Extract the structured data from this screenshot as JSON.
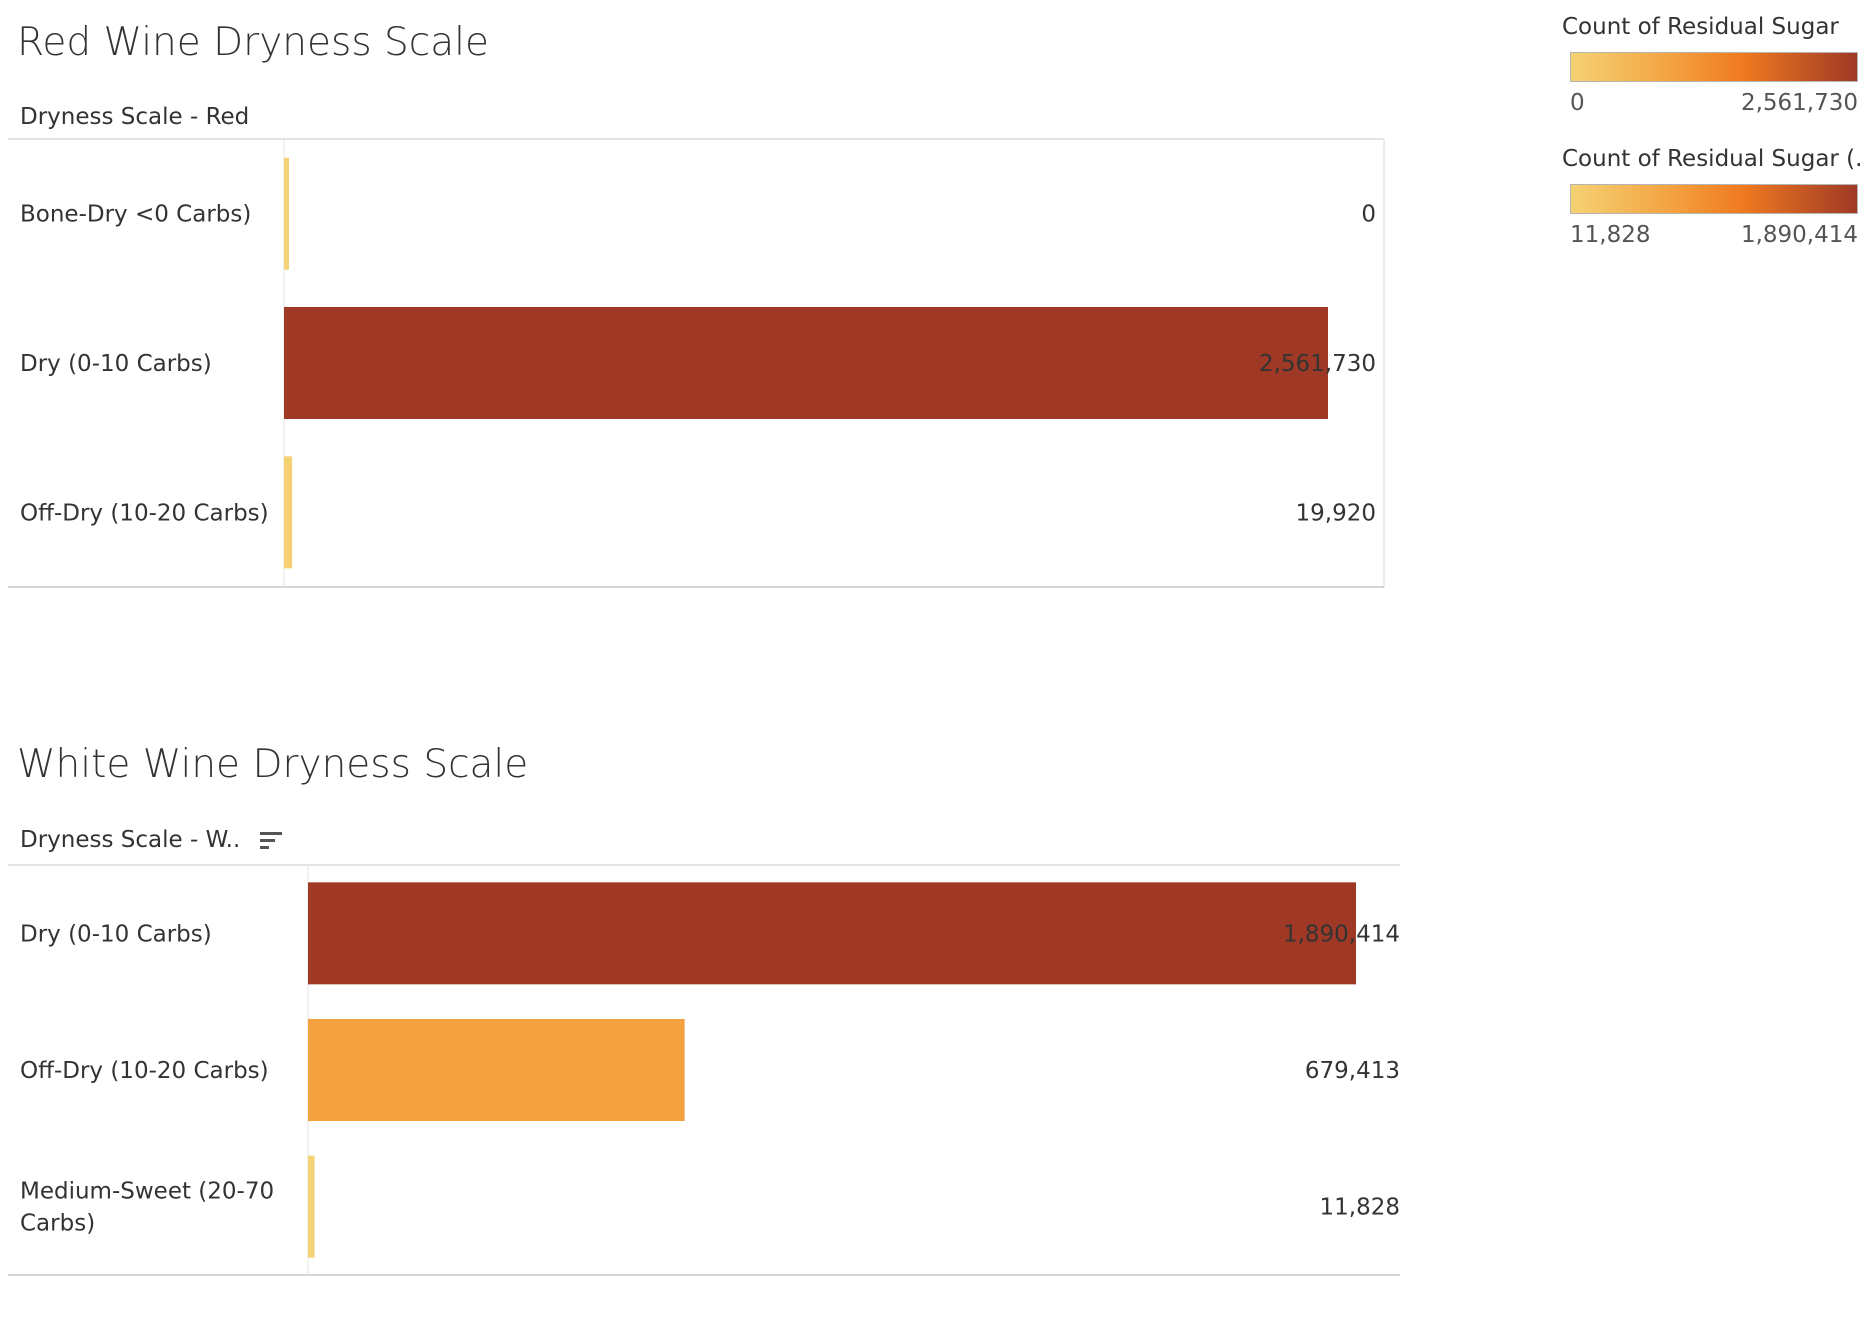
{
  "colors": {
    "scale_low": "#f5d274",
    "scale_mid_low": "#f4a241",
    "scale_mid": "#ef7a20",
    "scale_high": "#9f3926"
  },
  "chart_data": [
    {
      "type": "bar",
      "orientation": "horizontal",
      "title": "Red Wine Dryness Scale",
      "category_header": "Dryness Scale - Red",
      "categories": [
        "Bone-Dry <0 Carbs)",
        "Dry (0-10 Carbs)",
        "Off-Dry (10-20 Carbs)"
      ],
      "values": [
        0,
        2561730,
        19920
      ],
      "value_labels": [
        "0",
        "2,561,730",
        "19,920"
      ],
      "xlim": [
        0,
        2561730
      ],
      "color_legend": {
        "title": "Count of Residual Sugar",
        "min_label": "0",
        "max_label": "2,561,730",
        "min": 0,
        "max": 2561730
      }
    },
    {
      "type": "bar",
      "orientation": "horizontal",
      "title": "White Wine Dryness Scale",
      "category_header": "Dryness Scale - W..",
      "sort_icon": "sort-descending-icon",
      "categories": [
        "Dry (0-10 Carbs)",
        "Off-Dry (10-20 Carbs)",
        "Medium-Sweet (20-70 Carbs)"
      ],
      "values": [
        1890414,
        679413,
        11828
      ],
      "value_labels": [
        "1,890,414",
        "679,413",
        "11,828"
      ],
      "xlim": [
        0,
        1890414
      ],
      "color_legend": {
        "title": "Count of Residual Sugar (..",
        "min_label": "11,828",
        "max_label": "1,890,414",
        "min": 11828,
        "max": 1890414
      }
    }
  ]
}
